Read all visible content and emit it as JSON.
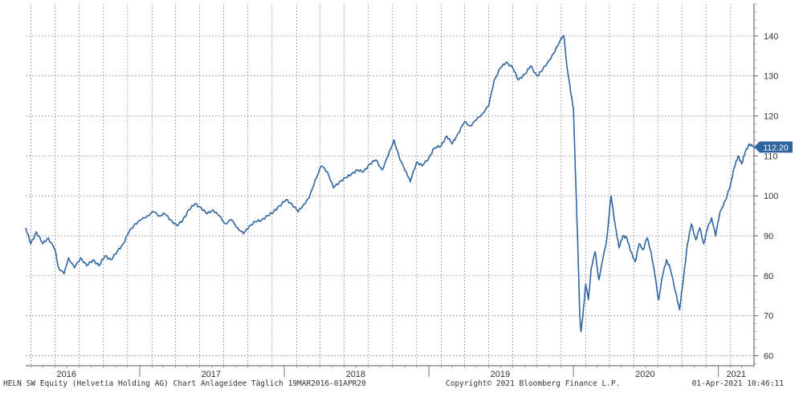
{
  "chart_data": {
    "type": "line",
    "x_axis": {
      "years": [
        {
          "label": "2016",
          "date": "2016-06-30"
        },
        {
          "label": "2017",
          "date": "2017-06-30"
        },
        {
          "label": "2018",
          "date": "2018-06-30"
        },
        {
          "label": "2019",
          "date": "2019-06-30"
        },
        {
          "label": "2020",
          "date": "2020-06-30"
        },
        {
          "label": "2021",
          "date": "2021-02-15"
        }
      ],
      "year_boundaries": [
        "2017-01-01",
        "2018-01-01",
        "2019-01-01",
        "2020-01-01",
        "2021-01-01"
      ],
      "range": [
        "2016-03-19",
        "2021-04-01"
      ]
    },
    "y_axis": {
      "ticks": [
        60,
        70,
        80,
        90,
        100,
        110,
        120,
        130,
        140
      ],
      "range": [
        57.5,
        148
      ],
      "position": "right"
    },
    "grid": true,
    "series": [
      {
        "color": "#2f64a0",
        "points": [
          [
            "2016-03-19",
            92
          ],
          [
            "2016-04-01",
            88
          ],
          [
            "2016-04-15",
            91
          ],
          [
            "2016-05-01",
            88
          ],
          [
            "2016-05-15",
            89.5
          ],
          [
            "2016-06-01",
            86.5
          ],
          [
            "2016-06-10",
            82
          ],
          [
            "2016-06-24",
            80.5
          ],
          [
            "2016-07-05",
            84.5
          ],
          [
            "2016-07-20",
            82
          ],
          [
            "2016-08-05",
            84.5
          ],
          [
            "2016-08-20",
            82.5
          ],
          [
            "2016-09-05",
            84
          ],
          [
            "2016-09-20",
            82.5
          ],
          [
            "2016-10-05",
            85
          ],
          [
            "2016-10-20",
            84
          ],
          [
            "2016-11-05",
            86
          ],
          [
            "2016-11-20",
            88
          ],
          [
            "2016-12-05",
            91
          ],
          [
            "2016-12-20",
            93
          ],
          [
            "2017-01-05",
            94
          ],
          [
            "2017-01-20",
            95
          ],
          [
            "2017-02-05",
            96
          ],
          [
            "2017-02-20",
            95
          ],
          [
            "2017-03-05",
            95.5
          ],
          [
            "2017-03-20",
            94
          ],
          [
            "2017-04-05",
            92.5
          ],
          [
            "2017-04-20",
            94
          ],
          [
            "2017-05-05",
            96.5
          ],
          [
            "2017-05-20",
            98
          ],
          [
            "2017-06-05",
            97
          ],
          [
            "2017-06-20",
            95.5
          ],
          [
            "2017-07-05",
            96.5
          ],
          [
            "2017-07-20",
            95
          ],
          [
            "2017-08-05",
            93
          ],
          [
            "2017-08-20",
            94
          ],
          [
            "2017-09-05",
            92
          ],
          [
            "2017-09-20",
            90.5
          ],
          [
            "2017-10-05",
            92.5
          ],
          [
            "2017-10-20",
            93.5
          ],
          [
            "2017-11-05",
            94
          ],
          [
            "2017-11-20",
            95
          ],
          [
            "2017-12-05",
            96
          ],
          [
            "2017-12-20",
            97.5
          ],
          [
            "2018-01-05",
            99
          ],
          [
            "2018-01-20",
            98
          ],
          [
            "2018-02-05",
            96
          ],
          [
            "2018-02-20",
            98
          ],
          [
            "2018-03-05",
            99.5
          ],
          [
            "2018-03-20",
            104
          ],
          [
            "2018-04-05",
            107.5
          ],
          [
            "2018-04-20",
            106
          ],
          [
            "2018-05-05",
            102
          ],
          [
            "2018-05-20",
            103.5
          ],
          [
            "2018-06-05",
            104.5
          ],
          [
            "2018-06-20",
            105.5
          ],
          [
            "2018-07-05",
            106.5
          ],
          [
            "2018-07-20",
            106
          ],
          [
            "2018-08-05",
            108
          ],
          [
            "2018-08-20",
            109
          ],
          [
            "2018-09-05",
            106.5
          ],
          [
            "2018-09-20",
            110
          ],
          [
            "2018-10-05",
            114
          ],
          [
            "2018-10-20",
            109
          ],
          [
            "2018-11-05",
            106
          ],
          [
            "2018-11-15",
            103.5
          ],
          [
            "2018-12-01",
            108.5
          ],
          [
            "2018-12-15",
            107.5
          ],
          [
            "2019-01-01",
            109.5
          ],
          [
            "2019-01-15",
            112
          ],
          [
            "2019-02-01",
            112.5
          ],
          [
            "2019-02-15",
            115
          ],
          [
            "2019-03-01",
            113
          ],
          [
            "2019-03-15",
            115.5
          ],
          [
            "2019-04-01",
            118.5
          ],
          [
            "2019-04-15",
            117.5
          ],
          [
            "2019-05-01",
            119
          ],
          [
            "2019-05-15",
            120.5
          ],
          [
            "2019-06-01",
            122.5
          ],
          [
            "2019-06-15",
            129
          ],
          [
            "2019-07-01",
            132
          ],
          [
            "2019-07-15",
            133.5
          ],
          [
            "2019-08-01",
            132
          ],
          [
            "2019-08-15",
            129
          ],
          [
            "2019-09-01",
            130.5
          ],
          [
            "2019-09-15",
            132.5
          ],
          [
            "2019-10-01",
            130
          ],
          [
            "2019-10-15",
            131.5
          ],
          [
            "2019-11-01",
            134
          ],
          [
            "2019-11-15",
            136
          ],
          [
            "2019-12-01",
            139.5
          ],
          [
            "2019-12-08",
            140
          ],
          [
            "2019-12-15",
            133
          ],
          [
            "2019-12-25",
            126
          ],
          [
            "2020-01-01",
            122
          ],
          [
            "2020-01-05",
            109
          ],
          [
            "2020-01-08",
            100
          ],
          [
            "2020-01-12",
            88
          ],
          [
            "2020-01-17",
            70
          ],
          [
            "2020-01-20",
            66
          ],
          [
            "2020-01-25",
            70
          ],
          [
            "2020-02-01",
            78
          ],
          [
            "2020-02-08",
            74
          ],
          [
            "2020-02-15",
            82
          ],
          [
            "2020-02-25",
            86
          ],
          [
            "2020-03-05",
            79
          ],
          [
            "2020-03-15",
            84
          ],
          [
            "2020-03-25",
            89
          ],
          [
            "2020-04-05",
            100
          ],
          [
            "2020-04-15",
            93
          ],
          [
            "2020-04-25",
            87
          ],
          [
            "2020-05-05",
            90
          ],
          [
            "2020-05-15",
            89.5
          ],
          [
            "2020-05-25",
            86
          ],
          [
            "2020-06-05",
            83.5
          ],
          [
            "2020-06-15",
            88
          ],
          [
            "2020-06-25",
            86.5
          ],
          [
            "2020-07-05",
            89.5
          ],
          [
            "2020-07-15",
            86
          ],
          [
            "2020-07-25",
            80
          ],
          [
            "2020-08-03",
            74
          ],
          [
            "2020-08-13",
            80
          ],
          [
            "2020-08-23",
            84
          ],
          [
            "2020-09-01",
            82
          ],
          [
            "2020-09-15",
            76
          ],
          [
            "2020-09-25",
            71.5
          ],
          [
            "2020-10-05",
            79.5
          ],
          [
            "2020-10-15",
            88
          ],
          [
            "2020-10-25",
            93
          ],
          [
            "2020-11-05",
            89
          ],
          [
            "2020-11-15",
            92
          ],
          [
            "2020-11-25",
            88
          ],
          [
            "2020-12-05",
            92
          ],
          [
            "2020-12-15",
            94.5
          ],
          [
            "2020-12-25",
            90
          ],
          [
            "2021-01-05",
            96
          ],
          [
            "2021-01-20",
            99
          ],
          [
            "2021-02-01",
            103
          ],
          [
            "2021-02-10",
            107
          ],
          [
            "2021-02-20",
            110
          ],
          [
            "2021-03-01",
            108
          ],
          [
            "2021-03-10",
            111
          ],
          [
            "2021-03-20",
            113
          ],
          [
            "2021-04-01",
            112.2
          ]
        ]
      }
    ],
    "last_value_label": "112.20",
    "annotations": {
      "footer_left": "HELN SW Equity (Helvetia Holding AG) Chart Anlageidee  Täglich 19MAR2016-01APR20",
      "footer_mid": "Copyright© 2021 Bloomberg Finance L.P.",
      "footer_right": "01-Apr-2021 10:46:11"
    }
  }
}
